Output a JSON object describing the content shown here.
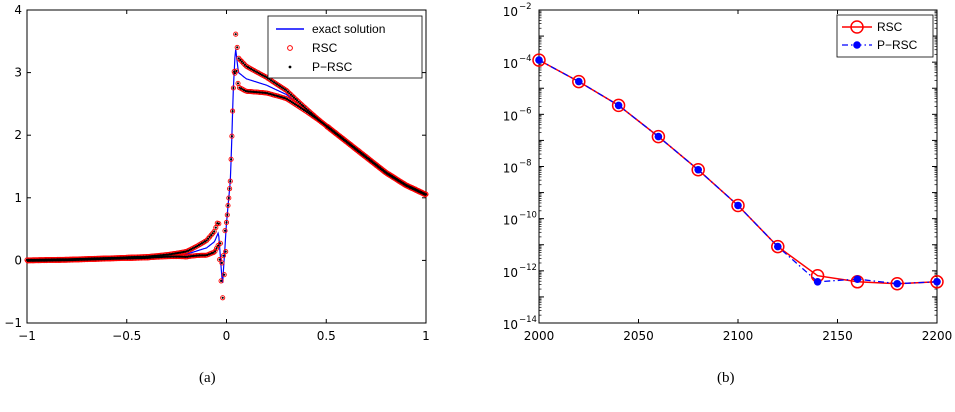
{
  "chart_data": [
    {
      "type": "line",
      "xlim": [
        -1,
        1
      ],
      "ylim": [
        -1,
        4
      ],
      "xticks": [
        -1,
        -0.5,
        0,
        0.5,
        1
      ],
      "xtick_labels": [
        "−1",
        "−0.5",
        "0",
        "0.5",
        "1"
      ],
      "yticks": [
        -1,
        0,
        1,
        2,
        3,
        4
      ],
      "ytick_labels": [
        "−1",
        "0",
        "1",
        "2",
        "3",
        "4"
      ],
      "legend_position": "top-right",
      "series": [
        {
          "name": "exact solution",
          "style": "line",
          "color": "#0000ff"
        },
        {
          "name": "RSC",
          "style": "markers (open circles)",
          "color": "#ff0000"
        },
        {
          "name": "P−RSC",
          "style": "markers (dots)",
          "color": "#000000"
        }
      ],
      "x": [
        -1.0,
        -0.8,
        -0.6,
        -0.4,
        -0.2,
        -0.1,
        -0.06,
        -0.04,
        -0.02,
        0.0,
        0.02,
        0.035,
        0.045,
        0.06,
        0.1,
        0.2,
        0.3,
        0.4,
        0.5,
        0.6,
        0.7,
        0.8,
        0.9,
        1.0
      ],
      "y": [
        0.0,
        0.01,
        0.03,
        0.05,
        0.1,
        0.2,
        0.3,
        0.45,
        -0.4,
        0.6,
        1.3,
        2.8,
        3.4,
        3.0,
        2.9,
        2.8,
        2.65,
        2.4,
        2.15,
        1.9,
        1.65,
        1.4,
        1.2,
        1.05
      ],
      "oscillation": {
        "left": {
          "x_from": -0.5,
          "x_to": 0.0,
          "amplitude_start": 0.02,
          "amplitude_end": 0.55
        },
        "right": {
          "x_from": 0.0,
          "x_to": 0.5,
          "amplitude_start": 0.5,
          "amplitude_end": 0.0
        }
      }
    },
    {
      "type": "line",
      "ylog": true,
      "xlim": [
        2000,
        2200
      ],
      "ylim": [
        1e-14,
        0.01
      ],
      "xticks": [
        2000,
        2050,
        2100,
        2150,
        2200
      ],
      "xtick_labels": [
        "2000",
        "2050",
        "2100",
        "2150",
        "2200"
      ],
      "ytick_exponents": [
        "−14",
        "−12",
        "−10",
        "−8",
        "−6",
        "−4",
        "−2"
      ],
      "ytick_base": "10",
      "legend_position": "top-right",
      "x": [
        2000,
        2020,
        2040,
        2060,
        2080,
        2100,
        2120,
        2140,
        2160,
        2180,
        2200
      ],
      "series": [
        {
          "name": "RSC",
          "color": "#ff0000",
          "marker": "open circle",
          "line": "solid",
          "values": [
            0.00012,
            1.8e-05,
            2.2e-06,
            1.4e-07,
            7.5e-09,
            3.2e-10,
            8.5e-12,
            6.5e-13,
            3.8e-13,
            3.2e-13,
            3.8e-13
          ]
        },
        {
          "name": "P−RSC",
          "color": "#0000ff",
          "marker": "filled circle",
          "line": "dash-dot",
          "values": [
            0.00012,
            1.8e-05,
            2.2e-06,
            1.4e-07,
            7.5e-09,
            3.2e-10,
            8.5e-12,
            3.8e-13,
            4.8e-13,
            3.2e-13,
            3.8e-13
          ]
        }
      ]
    }
  ],
  "captions": {
    "a": "(a)",
    "b": "(b)"
  }
}
